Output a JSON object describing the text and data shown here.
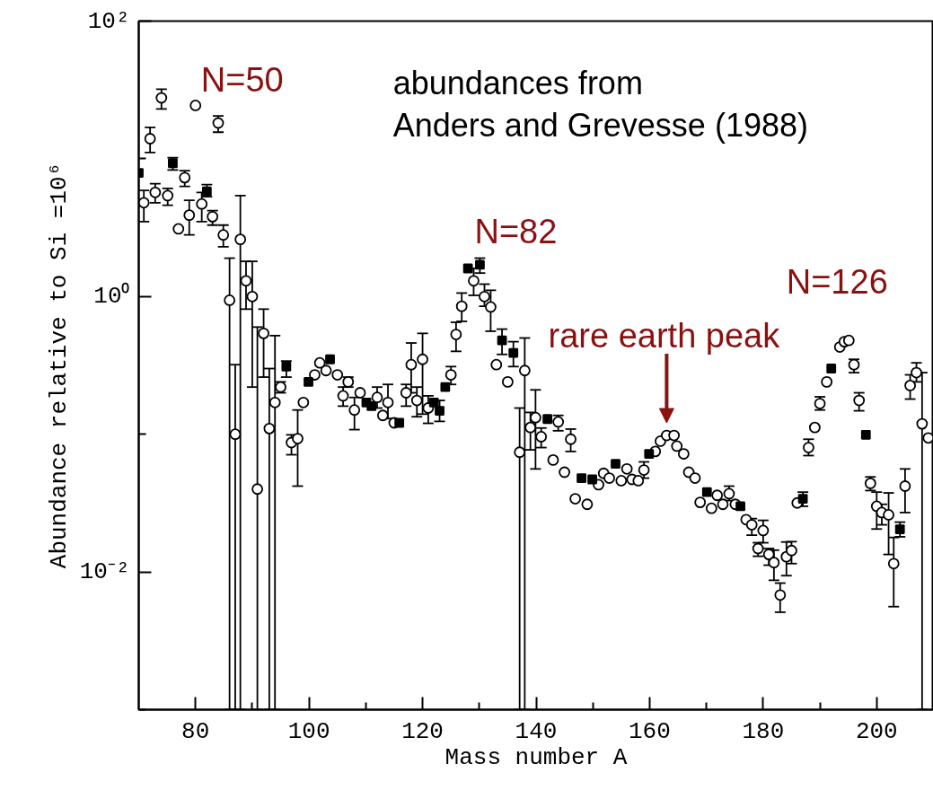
{
  "chart_data": {
    "type": "scatter",
    "xlabel": "Mass number A",
    "ylabel": "Abundance relative to Si =10⁶",
    "log": "y",
    "xlim": [
      70,
      210
    ],
    "ylim": [
      0.001,
      100
    ],
    "xticks": [
      80,
      {
        "value": 90,
        "label": null
      },
      100,
      {
        "value": 110,
        "label": null
      },
      120,
      {
        "value": 130,
        "label": null
      },
      140,
      {
        "value": 150,
        "label": null
      },
      160,
      {
        "value": 170,
        "label": null
      },
      180,
      {
        "value": 190,
        "label": null
      },
      200
    ],
    "yticks": [
      {
        "value": 0.001,
        "label": null
      },
      {
        "value": 0.01,
        "label": "10⁻²"
      },
      {
        "value": 0.1,
        "label": null
      },
      {
        "value": 1,
        "label": "10⁰"
      },
      {
        "value": 10,
        "label": null
      },
      {
        "value": 100,
        "label": "10²"
      }
    ],
    "annotations": [
      {
        "text": "N=50",
        "x": 80,
        "y": 24.4
      },
      {
        "text": "N=82",
        "x": 130.1,
        "y": 1.7
      },
      {
        "text": "N=126",
        "x": 194.3,
        "y": 0.47
      },
      {
        "text": "rare earth peak",
        "x": 163,
        "y": 0.098
      },
      "abundances from\nAnders and Grevesse (1988)"
    ],
    "series": [
      {
        "color": "#000000",
        "marker": "circle",
        "x": [
          70.9,
          72.0,
          72.9,
          74.0,
          75.1,
          77.0,
          78.1,
          78.9,
          80.0,
          81.1,
          83.0,
          84.0,
          84.9,
          86.0,
          87.0,
          87.9,
          88.9,
          90.0,
          90.9,
          92.0,
          93.0,
          94.0,
          95.0,
          96.9,
          98.0,
          99.0,
          101.0,
          101.9,
          103.0,
          105.0,
          106.0,
          106.9,
          108.0,
          109.0,
          112.0,
          113.0,
          113.9,
          115.0,
          117.1,
          118.0,
          119.0,
          120.0,
          121.0,
          125.0,
          125.9,
          126.9,
          129.0,
          130.9,
          132.0,
          133.0,
          135.0,
          137.1,
          138.0,
          139.0,
          139.9,
          140.9,
          143.0,
          143.9,
          145.0,
          146.1,
          146.9,
          149.0,
          151.0,
          151.9,
          152.9,
          155.0,
          156.0,
          156.9,
          158.0,
          159.0,
          161.0,
          161.9,
          163.0,
          164.3,
          164.8,
          166.0,
          166.9,
          168.0,
          168.9,
          170.9,
          171.9,
          172.9,
          174.0,
          175.1,
          177.0,
          178.0,
          179.1,
          180.0,
          181.0,
          181.9,
          183.0,
          184.1,
          185.0,
          186.0,
          188.0,
          189.1,
          190.0,
          191.2,
          193.5,
          194.3,
          195.1,
          196.0,
          196.9,
          198.9,
          200.0,
          200.9,
          202.1,
          203.0,
          205.0,
          205.9,
          207.0,
          208.0,
          209.1
        ],
        "values": [
          4.8,
          14,
          5.7,
          27.7,
          5.4,
          3.1,
          7.3,
          3.9,
          24.4,
          4.7,
          3.8,
          18.2,
          2.8,
          0.94,
          0.1,
          2.6,
          1.3,
          1.0,
          0.04,
          0.54,
          0.11,
          0.17,
          0.22,
          0.087,
          0.093,
          0.17,
          0.27,
          0.33,
          0.29,
          0.27,
          0.19,
          0.24,
          0.15,
          0.2,
          0.185,
          0.137,
          0.17,
          0.121,
          0.2,
          0.32,
          0.176,
          0.35,
          0.155,
          0.27,
          0.53,
          0.85,
          1.3,
          1.0,
          0.84,
          0.32,
          0.24,
          0.074,
          0.29,
          0.112,
          0.132,
          0.096,
          0.065,
          0.123,
          0.053,
          0.092,
          0.034,
          0.031,
          0.043,
          0.052,
          0.048,
          0.046,
          0.056,
          0.047,
          0.046,
          0.055,
          0.075,
          0.089,
          0.098,
          0.098,
          0.082,
          0.072,
          0.053,
          0.048,
          0.032,
          0.029,
          0.036,
          0.031,
          0.037,
          0.031,
          0.024,
          0.022,
          0.0148,
          0.02,
          0.0134,
          0.0117,
          0.0068,
          0.0129,
          0.0143,
          0.0317,
          0.08,
          0.112,
          0.167,
          0.24,
          0.43,
          0.47,
          0.48,
          0.32,
          0.176,
          0.044,
          0.03,
          0.027,
          0.026,
          0.0115,
          0.042,
          0.226,
          0.28,
          0.119,
          0.094
        ],
        "errors": [
          [
            3.5,
            5.9
          ],
          [
            11.1,
            16.9
          ],
          [
            4.8,
            6.6
          ],
          [
            23,
            32
          ],
          [
            4.6,
            6.1
          ],
          null,
          [
            6.3,
            8.2
          ],
          [
            2.8,
            5.0
          ],
          null,
          [
            3.5,
            5.7
          ],
          [
            3.3,
            4.2
          ],
          [
            15.6,
            20.5
          ],
          [
            2.3,
            3.3
          ],
          [
            0.001,
            1.9
          ],
          [
            0.001,
            0.32
          ],
          [
            0.001,
            5.4
          ],
          [
            0.81,
            1.8
          ],
          [
            0.22,
            1.8
          ],
          [
            0.001,
            0.6
          ],
          [
            0.26,
            0.81
          ],
          [
            0.001,
            0.3
          ],
          [
            0.001,
            0.52
          ],
          [
            0.2,
            0.24
          ],
          [
            0.071,
            0.099
          ],
          [
            0.042,
            0.15
          ],
          null,
          null,
          null,
          null,
          null,
          [
            0.16,
            0.22
          ],
          [
            0.22,
            0.26
          ],
          [
            0.108,
            0.185
          ],
          null,
          [
            0.155,
            0.22
          ],
          null,
          [
            0.13,
            0.23
          ],
          null,
          [
            0.16,
            0.23
          ],
          [
            0.2,
            0.46
          ],
          [
            0.134,
            0.22
          ],
          [
            0.14,
            0.54
          ],
          [
            0.12,
            0.19
          ],
          [
            0.23,
            0.31
          ],
          [
            0.4,
            0.65
          ],
          [
            0.66,
            1.06
          ],
          [
            1.02,
            1.6
          ],
          [
            0.85,
            1.23
          ],
          [
            0.56,
            1.11
          ],
          null,
          null,
          [
            0.001,
            0.155
          ],
          [
            0.001,
            0.5
          ],
          [
            0.077,
            0.144
          ],
          [
            0.056,
            0.21
          ],
          [
            0.08,
            0.111
          ],
          null,
          [
            0.106,
            0.137
          ],
          null,
          [
            0.075,
            0.109
          ],
          null,
          null,
          null,
          null,
          null,
          null,
          null,
          null,
          null,
          [
            0.048,
            0.063
          ],
          null,
          null,
          null,
          null,
          null,
          null,
          null,
          null,
          null,
          null,
          null,
          null,
          [
            0.033,
            0.042
          ],
          null,
          null,
          [
            0.0185,
            0.0244
          ],
          [
            0.013,
            0.0163
          ],
          [
            0.0163,
            0.0237
          ],
          [
            0.0112,
            0.0148
          ],
          [
            0.0087,
            0.0144
          ],
          [
            0.0051,
            0.0083
          ],
          [
            0.0094,
            0.0165
          ],
          [
            0.0115,
            0.0166
          ],
          null,
          [
            0.07,
            0.092
          ],
          null,
          [
            0.15,
            0.187
          ],
          null,
          null,
          null,
          null,
          [
            0.28,
            0.35
          ],
          [
            0.148,
            0.2
          ],
          [
            0.039,
            0.049
          ],
          [
            0.0205,
            0.038
          ],
          [
            0.022,
            0.031
          ],
          [
            0.0134,
            0.0375
          ],
          [
            0.0056,
            0.0178
          ],
          [
            0.027,
            0.056
          ],
          [
            0.18,
            0.27
          ],
          [
            0.24,
            0.33
          ],
          [
            0.001,
            0.28
          ],
          null
        ]
      },
      {
        "color": "#000000",
        "marker": "square",
        "x": [
          70.0,
          76.0,
          82.0,
          96.0,
          99.9,
          103.7,
          110.1,
          111.0,
          115.9,
          122.0,
          123.0,
          124.0,
          128.0,
          130.1,
          134.0,
          136.0,
          142.0,
          148.0,
          149.9,
          154.0,
          159.9,
          170.1,
          176.0,
          187.0,
          192.0,
          198.1,
          204.1
        ],
        "values": [
          7.9,
          9.3,
          5.8,
          0.31,
          0.24,
          0.35,
          0.17,
          0.16,
          0.121,
          0.17,
          0.148,
          0.22,
          1.6,
          1.7,
          0.48,
          0.39,
          0.129,
          0.048,
          0.047,
          0.061,
          0.072,
          0.038,
          0.03,
          0.034,
          0.3,
          0.099,
          0.0204
        ],
        "errors": [
          null,
          [
            8.3,
            10.2
          ],
          [
            5.3,
            6.5
          ],
          [
            0.26,
            0.34
          ],
          null,
          null,
          null,
          null,
          null,
          null,
          [
            0.124,
            0.176
          ],
          null,
          null,
          [
            1.48,
            1.9
          ],
          [
            0.38,
            0.58
          ],
          [
            0.31,
            0.47
          ],
          null,
          null,
          null,
          null,
          null,
          null,
          null,
          [
            0.03,
            0.038
          ],
          null,
          null,
          [
            0.018,
            0.023
          ]
        ]
      }
    ]
  }
}
